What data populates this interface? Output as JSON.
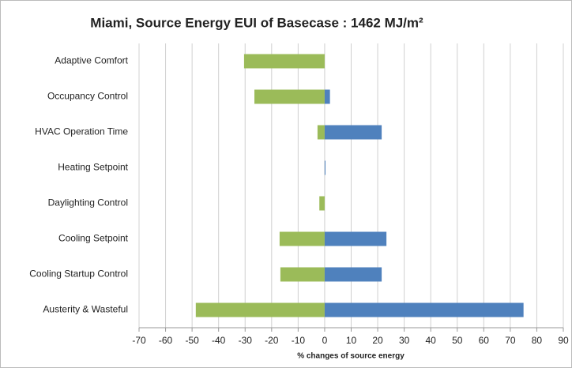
{
  "chart_data": {
    "type": "hbar",
    "title": "Miami, Source Energy EUI of Basecase : 1462 MJ/m²",
    "x_label": "% changes of source energy",
    "categories": [
      "Adaptive Comfort",
      "Occupancy Control",
      "HVAC Operation Time",
      "Heating Setpoint",
      "Daylighting Control",
      "Cooling Setpoint",
      "Cooling Startup Control",
      "Austerity & Wasteful"
    ],
    "series": [
      {
        "color": "#9bbb59",
        "values": [
          -30.4,
          -26.5,
          -2.7,
          0,
          -2,
          -17,
          -16.7,
          -48.6
        ]
      },
      {
        "color": "#4f81bd",
        "values": [
          0,
          2,
          21.5,
          0.3,
          0,
          23.3,
          21.5,
          75
        ]
      }
    ],
    "xlim": [
      -70,
      90
    ],
    "xticks": [
      -70,
      -60,
      -50,
      -40,
      -30,
      -20,
      -10,
      0,
      10,
      20,
      30,
      40,
      50,
      60,
      70,
      80,
      90
    ],
    "grid": true
  }
}
